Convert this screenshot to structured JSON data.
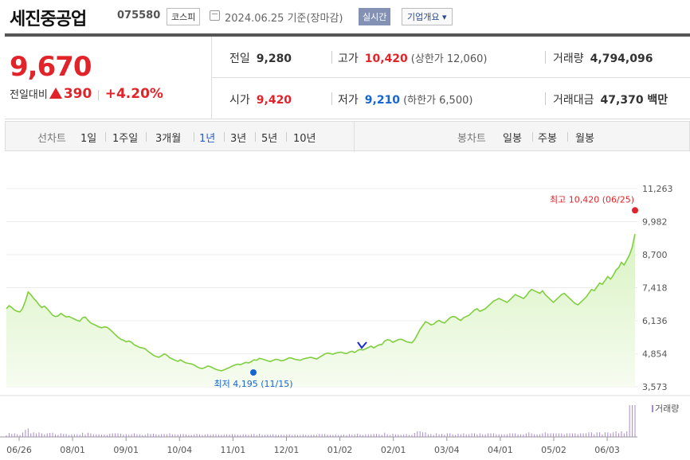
{
  "header": {
    "name": "세진중공업",
    "code": "075580",
    "market": "코스피",
    "date": "2024.06.25 기준(장마감)",
    "realtime": "실시간",
    "company_info": "기업개요 ▾"
  },
  "quote": {
    "price": "9,670",
    "change_label": "전일대비",
    "change": "390",
    "change_pct": "+4.20%",
    "prev_close_label": "전일",
    "prev_close": "9,280",
    "high_label": "고가",
    "high": "10,420",
    "upper_limit": "(상한가 12,060)",
    "volume_label": "거래량",
    "volume": "4,794,096",
    "open_label": "시가",
    "open": "9,420",
    "low_label": "저가",
    "low": "9,210",
    "lower_limit": "(하한가 6,500)",
    "value_label": "거래대금",
    "value": "47,370 백만"
  },
  "tabs": {
    "line_label": "선차트",
    "line_periods": [
      "1일",
      "1주일",
      "3개월",
      "1년",
      "3년",
      "5년",
      "10년"
    ],
    "selected_period": "1년",
    "candle_label": "봉차트",
    "candle_periods": [
      "일봉",
      "주봉",
      "월봉"
    ]
  },
  "chart_data": {
    "type": "area",
    "y_ticks": [
      "11,263",
      "9,982",
      "8,700",
      "7,418",
      "6,136",
      "4,854",
      "3,573"
    ],
    "ylim": [
      3573,
      11263
    ],
    "x_ticks": [
      "06/26",
      "08/01",
      "09/01",
      "10/04",
      "11/01",
      "12/01",
      "01/02",
      "02/01",
      "03/04",
      "04/01",
      "05/02",
      "06/03"
    ],
    "max_annotation": "최고 10,420 (06/25)",
    "min_annotation": "최저 4,195 (11/15)",
    "volume_label": "거래량",
    "colors": {
      "line": "#7fcf3f",
      "fill_top": "#d9f3c3",
      "fill_bottom": "#f6fcf0",
      "max": "#e1242a",
      "min": "#1765d1",
      "volume": "#a88ad1"
    },
    "prices": [
      6600,
      6720,
      6650,
      6550,
      6500,
      6480,
      6620,
      6900,
      7250,
      7150,
      7000,
      6900,
      6750,
      6650,
      6700,
      6600,
      6480,
      6350,
      6300,
      6320,
      6420,
      6350,
      6280,
      6300,
      6250,
      6200,
      6150,
      6120,
      6250,
      6280,
      6150,
      6050,
      6000,
      5950,
      5900,
      5860,
      5900,
      5880,
      5800,
      5700,
      5600,
      5500,
      5420,
      5380,
      5320,
      5350,
      5300,
      5200,
      5150,
      5100,
      5080,
      5050,
      4950,
      4880,
      4800,
      4750,
      4720,
      4780,
      4850,
      4800,
      4700,
      4650,
      4600,
      4560,
      4620,
      4550,
      4500,
      4480,
      4460,
      4420,
      4350,
      4300,
      4280,
      4320,
      4380,
      4350,
      4300,
      4250,
      4220,
      4195,
      4230,
      4280,
      4320,
      4380,
      4420,
      4450,
      4430,
      4480,
      4520,
      4500,
      4550,
      4620,
      4600,
      4680,
      4650,
      4620,
      4580,
      4550,
      4600,
      4640,
      4620,
      4580,
      4600,
      4650,
      4700,
      4680,
      4640,
      4620,
      4600,
      4650,
      4680,
      4700,
      4720,
      4680,
      4650,
      4720,
      4780,
      4850,
      4880,
      4860,
      4840,
      4880,
      4900,
      4920,
      4880,
      4860,
      4920,
      4950,
      4900,
      4980,
      5020,
      5000,
      5050,
      5100,
      5150,
      5080,
      5150,
      5200,
      5220,
      5350,
      5400,
      5380,
      5300,
      5350,
      5400,
      5420,
      5380,
      5320,
      5300,
      5280,
      5400,
      5600,
      5800,
      5950,
      6100,
      6050,
      5980,
      6000,
      6100,
      6150,
      6080,
      6050,
      6150,
      6250,
      6300,
      6280,
      6200,
      6150,
      6250,
      6300,
      6350,
      6450,
      6550,
      6600,
      6500,
      6550,
      6600,
      6700,
      6800,
      6900,
      6950,
      7000,
      6950,
      6900,
      6850,
      6950,
      7050,
      7150,
      7100,
      7050,
      7000,
      7100,
      7250,
      7350,
      7300,
      7250,
      7200,
      7300,
      7150,
      7050,
      6950,
      6850,
      6950,
      7050,
      7150,
      7200,
      7100,
      7000,
      6900,
      6800,
      6750,
      6850,
      6950,
      7050,
      7200,
      7350,
      7300,
      7450,
      7600,
      7550,
      7700,
      7850,
      7750,
      7900,
      8100,
      8200,
      8400,
      8300,
      8500,
      8700,
      9000,
      9500
    ]
  }
}
